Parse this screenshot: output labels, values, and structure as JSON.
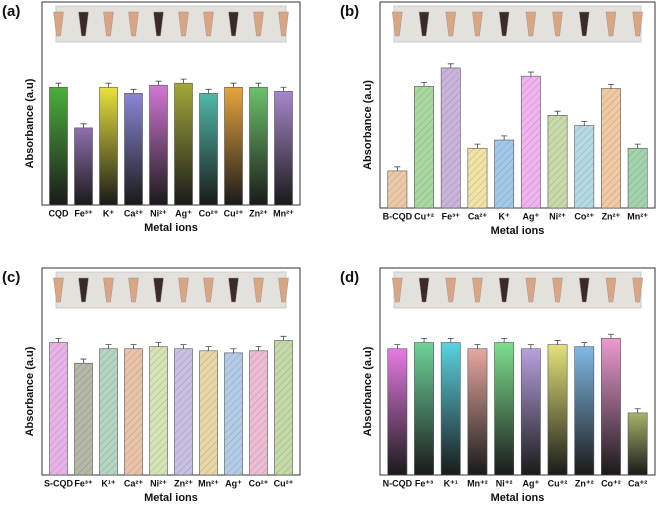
{
  "chart_data": [
    {
      "type": "bar",
      "label": "(a)",
      "xlabel": "Metal ions",
      "ylabel": "Absorbance (a.u)",
      "categories": [
        "CQD",
        "Fe³⁺",
        "K⁺",
        "Ca²⁺",
        "Ni²⁺",
        "Ag⁺",
        "Co²⁺",
        "Cu²⁺",
        "Zn²⁺",
        "Mn²⁺"
      ],
      "values": [
        0.58,
        0.38,
        0.58,
        0.55,
        0.59,
        0.6,
        0.55,
        0.58,
        0.58,
        0.56
      ],
      "errors": [
        0.02,
        0.02,
        0.02,
        0.02,
        0.02,
        0.02,
        0.02,
        0.02,
        0.02,
        0.02
      ],
      "colors": [
        "#4caf3c",
        "#8e70ad",
        "#e8e23c",
        "#8a86d6",
        "#d277d6",
        "#a3a83a",
        "#4fb9a8",
        "#e6a53e",
        "#6cc26a",
        "#a787c9"
      ],
      "ylim": [
        0,
        1
      ],
      "gradient": true,
      "hatch": false
    },
    {
      "type": "bar",
      "label": "(b)",
      "xlabel": "Metal ions",
      "ylabel": "Absorbance (a.u)",
      "categories": [
        "B-CQD",
        "Cu⁺²",
        "Fe³⁺",
        "Ca²⁺",
        "K⁺",
        "Ag⁺",
        "Ni²⁺",
        "Co²⁺",
        "Zn²⁺",
        "Mn²⁺"
      ],
      "values": [
        0.18,
        0.59,
        0.68,
        0.29,
        0.33,
        0.64,
        0.45,
        0.4,
        0.58,
        0.29
      ],
      "errors": [
        0.02,
        0.02,
        0.02,
        0.02,
        0.02,
        0.02,
        0.02,
        0.02,
        0.02,
        0.02
      ],
      "colors": [
        "#ecc9a6",
        "#a9d9a0",
        "#c9b3da",
        "#f1e3a3",
        "#a3c9ea",
        "#f0b3f0",
        "#c9daa9",
        "#b3dae2",
        "#f2c9a2",
        "#a3d3aa"
      ],
      "ylim": [
        0,
        1
      ],
      "gradient": false,
      "hatch": true
    },
    {
      "type": "bar",
      "label": "(c)",
      "xlabel": "Metal ions",
      "ylabel": "Absorbance (a.u)",
      "categories": [
        "S-CQD",
        "Fe³⁺",
        "K¹⁺",
        "Ca²⁺",
        "Ni²⁺",
        "Zn²⁺",
        "Mn²⁺",
        "Ag⁺",
        "Co²⁺",
        "Cu²⁺"
      ],
      "values": [
        0.64,
        0.54,
        0.61,
        0.61,
        0.62,
        0.61,
        0.6,
        0.59,
        0.6,
        0.65
      ],
      "errors": [
        0.02,
        0.02,
        0.02,
        0.02,
        0.02,
        0.02,
        0.02,
        0.02,
        0.02,
        0.02
      ],
      "colors": [
        "#e7b3e6",
        "#b4b8a4",
        "#b3d5c2",
        "#e9c3a8",
        "#d6e3b5",
        "#c8bfe2",
        "#e8d7a6",
        "#b3cbe6",
        "#eebcd2",
        "#c3d9a6"
      ],
      "ylim": [
        0,
        1
      ],
      "gradient": false,
      "hatch": true
    },
    {
      "type": "bar",
      "label": "(d)",
      "xlabel": "Metal ions",
      "ylabel": "Absorbance (a.u)",
      "categories": [
        "N-CQD",
        "Fe⁺³",
        "K⁺¹",
        "Mn⁺²",
        "Ni⁺²",
        "Ag⁺",
        "Cu⁺²",
        "Zn⁺²",
        "Co⁺²",
        "Ca⁺²"
      ],
      "values": [
        0.61,
        0.64,
        0.64,
        0.61,
        0.64,
        0.61,
        0.63,
        0.62,
        0.66,
        0.3
      ],
      "errors": [
        0.02,
        0.02,
        0.02,
        0.02,
        0.02,
        0.02,
        0.02,
        0.02,
        0.02,
        0.02
      ],
      "colors": [
        "#e57ae4",
        "#6fd39a",
        "#5ad3e0",
        "#e7a7a0",
        "#7de08e",
        "#b7a0df",
        "#e3e37a",
        "#7fb9e4",
        "#ec9bd0",
        "#a8b26a"
      ],
      "ylim": [
        0,
        1
      ],
      "gradient": true,
      "hatch": false
    }
  ]
}
